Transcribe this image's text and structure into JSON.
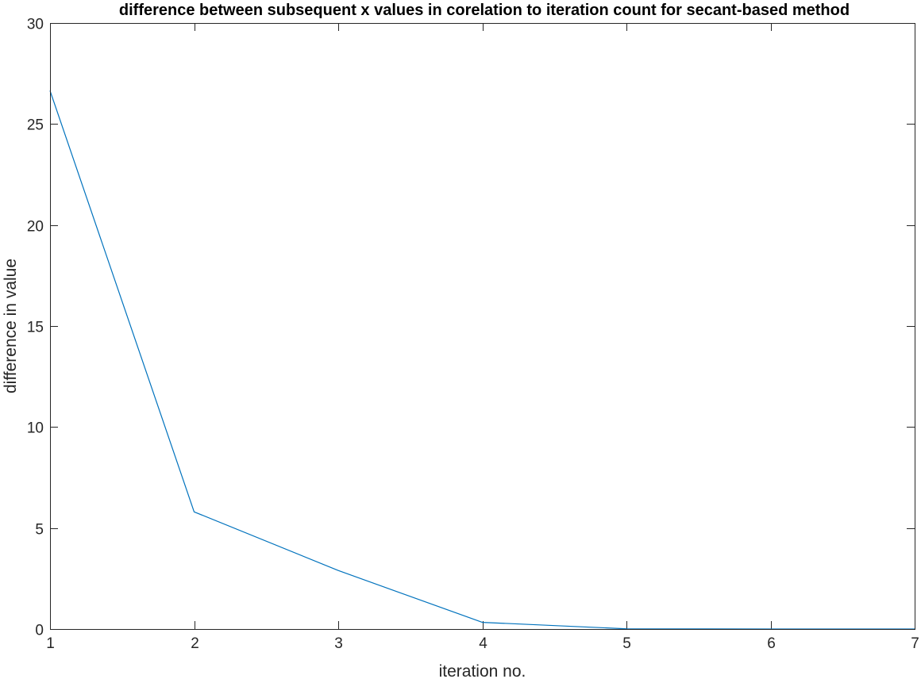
{
  "chart_data": {
    "type": "line",
    "title": "difference between subsequent x values in corelation to iteration count for secant-based method",
    "xlabel": "iteration no.",
    "ylabel": "difference in value",
    "xlim": [
      1,
      7
    ],
    "ylim": [
      0,
      30
    ],
    "xticks": [
      1,
      2,
      3,
      4,
      5,
      6,
      7
    ],
    "yticks": [
      0,
      5,
      10,
      15,
      20,
      25,
      30
    ],
    "grid": false,
    "legend": false,
    "series": [
      {
        "color": "#0072BD",
        "x": [
          1,
          2,
          3,
          4,
          5,
          6,
          7
        ],
        "y": [
          26.65,
          5.8,
          2.9,
          0.33,
          0.01,
          0.0,
          0.0
        ]
      }
    ]
  }
}
